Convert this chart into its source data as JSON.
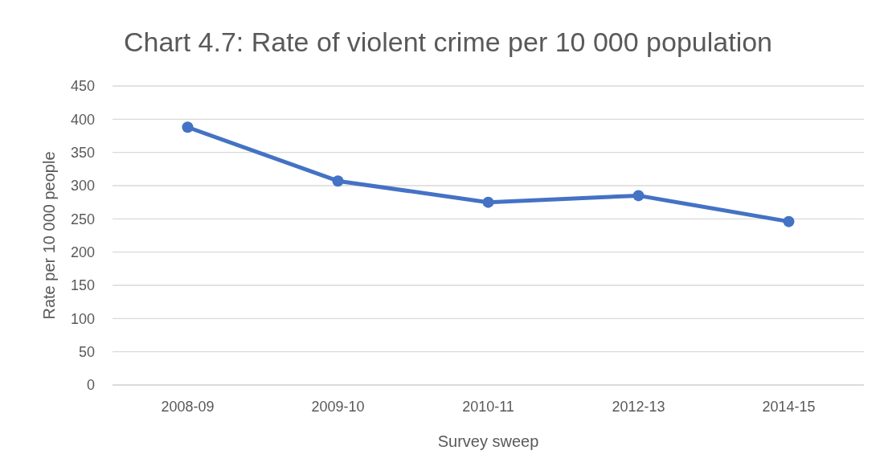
{
  "chart_data": {
    "type": "line",
    "title": "Chart 4.7: Rate of violent crime per 10 000 population",
    "xlabel": "Survey sweep",
    "ylabel": "Rate per 10 000 people",
    "categories": [
      "2008-09",
      "2009-10",
      "2010-11",
      "2012-13",
      "2014-15"
    ],
    "series": [
      {
        "color": "#4472c4",
        "values": [
          388,
          307,
          275,
          285,
          246
        ]
      }
    ],
    "ylim": [
      0,
      450
    ],
    "yticks": [
      0,
      50,
      100,
      150,
      200,
      250,
      300,
      350,
      400,
      450
    ],
    "grid": "y",
    "marker": "circle",
    "line_style": "solid"
  }
}
